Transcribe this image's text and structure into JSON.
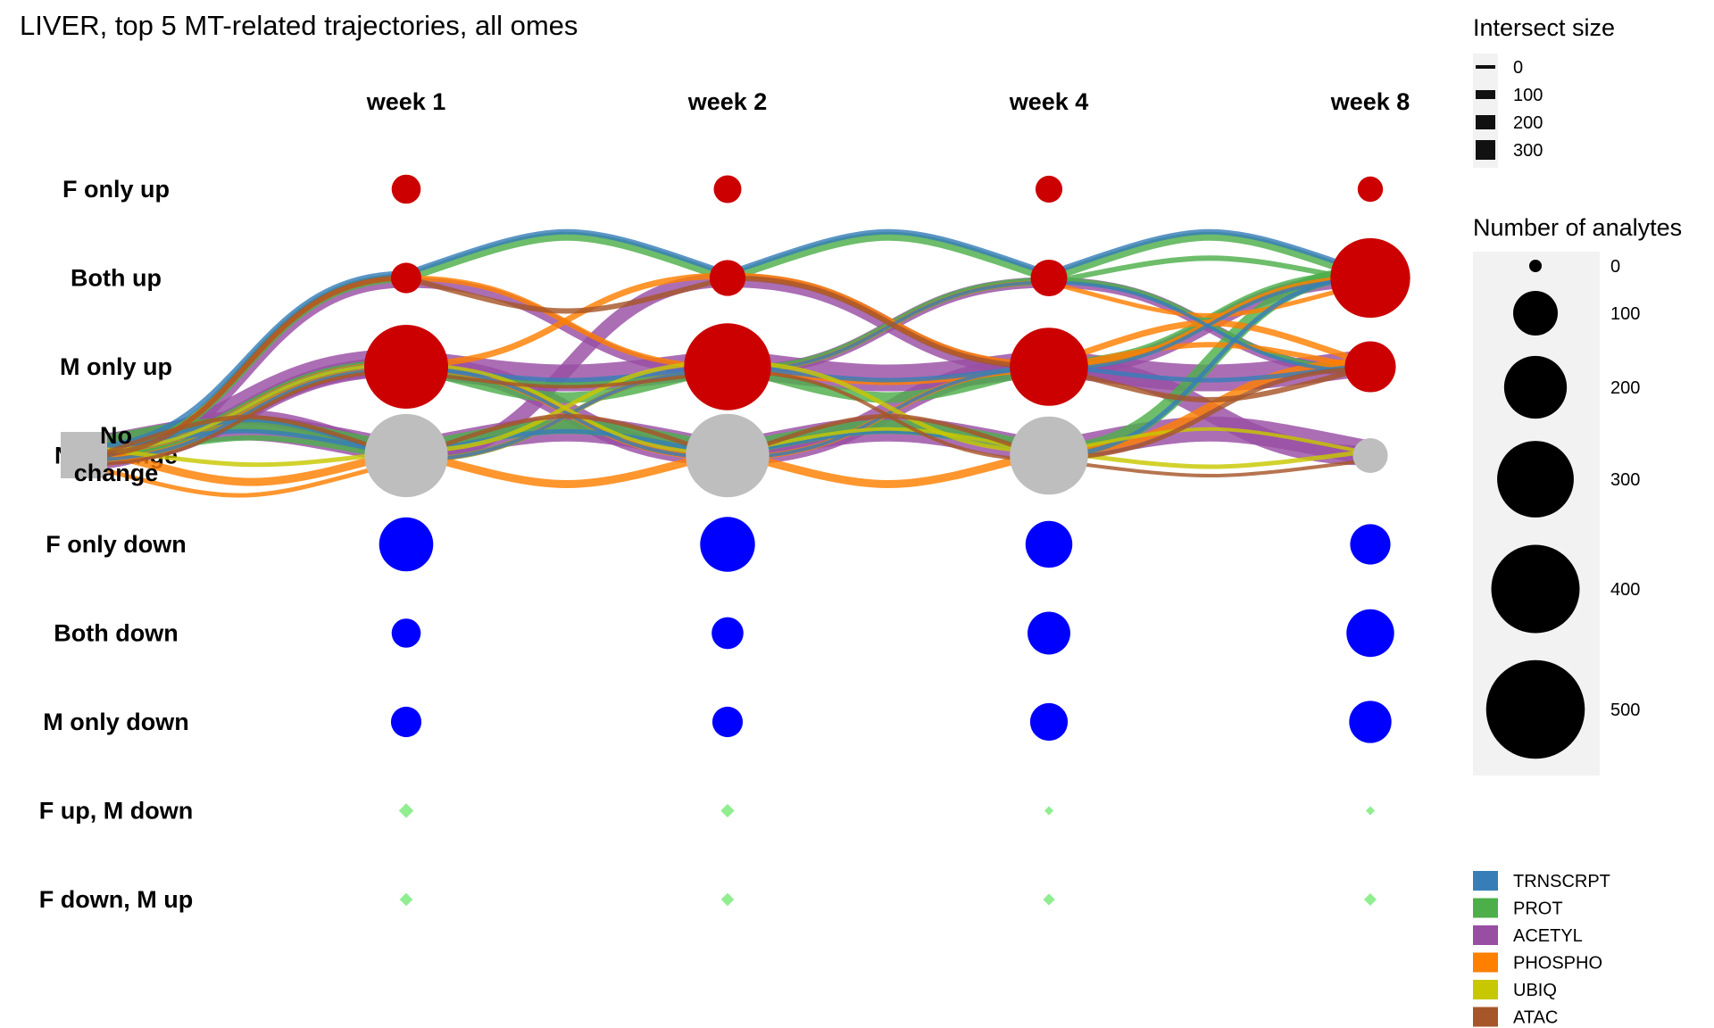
{
  "chart_data": {
    "type": "diagram",
    "title": "LIVER, top 5 MT-related trajectories, all omes",
    "columns": [
      "week 1",
      "week 2",
      "week 4",
      "week 8"
    ],
    "rows": [
      "F only up",
      "Both up",
      "M only up",
      "No change",
      "F only down",
      "Both down",
      "M only down",
      "F up, M down",
      "F down, M up"
    ],
    "start_node": "No\nchange",
    "node_colors": {
      "up": "#cc0000",
      "none": "#bebebe",
      "down": "#0000ff",
      "mixed": "#90ee90"
    },
    "node_sizes": [
      [
        40,
        36,
        34,
        30
      ],
      [
        44,
        62,
        64,
        312
      ],
      [
        346,
        372,
        300,
        126
      ],
      [
        340,
        342,
        300,
        58
      ],
      [
        142,
        146,
        106,
        78
      ],
      [
        40,
        48,
        88,
        110
      ],
      [
        44,
        44,
        68,
        86
      ],
      [
        9,
        7,
        1,
        1
      ],
      [
        6,
        6,
        4,
        5
      ]
    ],
    "legend_intersect": {
      "title": "Intersect size",
      "values": [
        "0",
        "100",
        "200",
        "300"
      ]
    },
    "legend_analytes": {
      "title": "Number of analytes",
      "values": [
        "0",
        "100",
        "200",
        "300",
        "400",
        "500"
      ]
    },
    "legend_omes": [
      {
        "name": "TRNSCRPT",
        "color": "#377eb8"
      },
      {
        "name": "PROT",
        "color": "#4daf4a"
      },
      {
        "name": "ACETYL",
        "color": "#984ea3"
      },
      {
        "name": "PHOSPHO",
        "color": "#ff7f00"
      },
      {
        "name": "UBIQ",
        "color": "#c8c800"
      },
      {
        "name": "ATAC",
        "color": "#a65628"
      }
    ],
    "trajectories": [
      {
        "ome": "ACETYL",
        "width": 30,
        "path": [
          3,
          2,
          2,
          2,
          2
        ]
      },
      {
        "ome": "ACETYL",
        "width": 28,
        "path": [
          3,
          3,
          3,
          3,
          3
        ]
      },
      {
        "ome": "ACETYL",
        "width": 22,
        "path": [
          3,
          2,
          3,
          2,
          3
        ]
      },
      {
        "ome": "ACETYL",
        "width": 16,
        "path": [
          3,
          3,
          1,
          2,
          1
        ]
      },
      {
        "ome": "ACETYL",
        "width": 12,
        "path": [
          3,
          1,
          2,
          1,
          2
        ]
      },
      {
        "ome": "PROT",
        "width": 16,
        "path": [
          3,
          3,
          3,
          3,
          1
        ]
      },
      {
        "ome": "PROT",
        "width": 12,
        "path": [
          3,
          2,
          2,
          2,
          1
        ]
      },
      {
        "ome": "PROT",
        "width": 10,
        "path": [
          3,
          1,
          1,
          1,
          1
        ]
      },
      {
        "ome": "PROT",
        "width": 6,
        "path": [
          3,
          2,
          2,
          1,
          2
        ]
      },
      {
        "ome": "PROT",
        "width": 6,
        "path": [
          3,
          3,
          2,
          1,
          1
        ]
      },
      {
        "ome": "PHOSPHO",
        "width": 9,
        "path": [
          3,
          3,
          3,
          3,
          2
        ]
      },
      {
        "ome": "PHOSPHO",
        "width": 7,
        "path": [
          3,
          2,
          1,
          2,
          2
        ]
      },
      {
        "ome": "PHOSPHO",
        "width": 6,
        "path": [
          3,
          1,
          2,
          2,
          1
        ]
      },
      {
        "ome": "PHOSPHO",
        "width": 6,
        "path": [
          3,
          2,
          3,
          2,
          2
        ]
      },
      {
        "ome": "PHOSPHO",
        "width": 5,
        "path": [
          3,
          3,
          2,
          1,
          1
        ]
      },
      {
        "ome": "TRNSCRPT",
        "width": 6,
        "path": [
          3,
          1,
          1,
          1,
          1
        ]
      },
      {
        "ome": "TRNSCRPT",
        "width": 5,
        "path": [
          3,
          2,
          2,
          2,
          2
        ]
      },
      {
        "ome": "TRNSCRPT",
        "width": 5,
        "path": [
          3,
          3,
          3,
          3,
          1
        ]
      },
      {
        "ome": "TRNSCRPT",
        "width": 4,
        "path": [
          3,
          2,
          3,
          2,
          1
        ]
      },
      {
        "ome": "TRNSCRPT",
        "width": 4,
        "path": [
          3,
          3,
          2,
          1,
          2
        ]
      },
      {
        "ome": "UBIQ",
        "width": 5,
        "path": [
          3,
          3,
          2,
          3,
          3
        ]
      },
      {
        "ome": "UBIQ",
        "width": 4,
        "path": [
          3,
          2,
          3,
          3,
          3
        ]
      },
      {
        "ome": "ATAC",
        "width": 6,
        "path": [
          3,
          1,
          1,
          2,
          2
        ]
      },
      {
        "ome": "ATAC",
        "width": 5,
        "path": [
          3,
          3,
          3,
          3,
          2
        ]
      },
      {
        "ome": "ATAC",
        "width": 4,
        "path": [
          3,
          2,
          2,
          3,
          3
        ]
      }
    ]
  }
}
